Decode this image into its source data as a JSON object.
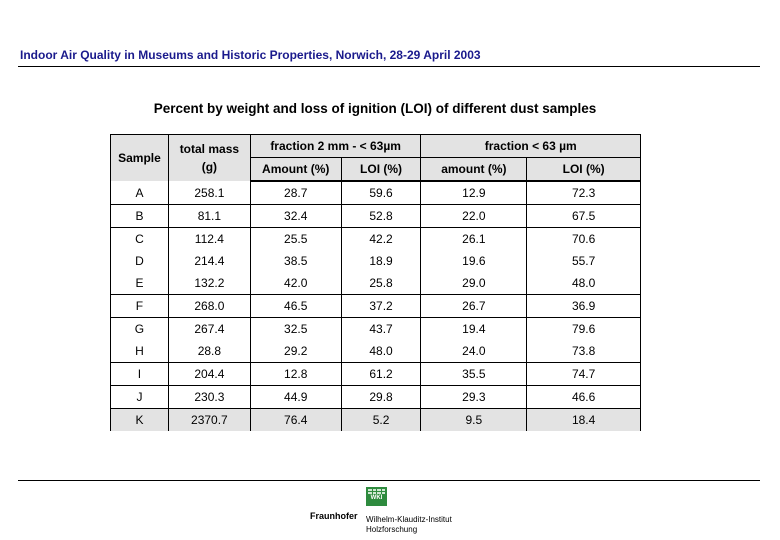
{
  "header": {
    "title": "Indoor Air Quality in Museums and Historic Properties, Norwich, 28-29 April 2003"
  },
  "table_title": "Percent by weight and loss of ignition (LOI) of different dust samples",
  "table": {
    "headers": {
      "sample": "Sample",
      "total_mass": "total mass",
      "total_mass_unit": "(g)",
      "fraction1": "fraction 2 mm - < 63µm",
      "fraction2": "fraction < 63 µm",
      "amount1": "Amount (%)",
      "loi1": "LOI (%)",
      "amount2": "amount (%)",
      "loi2": "LOI (%)"
    },
    "rows": [
      {
        "sample": "A",
        "mass": "258.1",
        "amt1": "28.7",
        "loi1": "59.6",
        "amt2": "12.9",
        "loi2": "72.3"
      },
      {
        "sample": "B",
        "mass": "81.1",
        "amt1": "32.4",
        "loi1": "52.8",
        "amt2": "22.0",
        "loi2": "67.5"
      },
      {
        "sample": "C",
        "mass": "112.4",
        "amt1": "25.5",
        "loi1": "42.2",
        "amt2": "26.1",
        "loi2": "70.6"
      },
      {
        "sample": "D",
        "mass": "214.4",
        "amt1": "38.5",
        "loi1": "18.9",
        "amt2": "19.6",
        "loi2": "55.7"
      },
      {
        "sample": "E",
        "mass": "132.2",
        "amt1": "42.0",
        "loi1": "25.8",
        "amt2": "29.0",
        "loi2": "48.0"
      },
      {
        "sample": "F",
        "mass": "268.0",
        "amt1": "46.5",
        "loi1": "37.2",
        "amt2": "26.7",
        "loi2": "36.9"
      },
      {
        "sample": "G",
        "mass": "267.4",
        "amt1": "32.5",
        "loi1": "43.7",
        "amt2": "19.4",
        "loi2": "79.6"
      },
      {
        "sample": "H",
        "mass": "28.8",
        "amt1": "29.2",
        "loi1": "48.0",
        "amt2": "24.0",
        "loi2": "73.8"
      },
      {
        "sample": "I",
        "mass": "204.4",
        "amt1": "12.8",
        "loi1": "61.2",
        "amt2": "35.5",
        "loi2": "74.7"
      },
      {
        "sample": "J",
        "mass": "230.3",
        "amt1": "44.9",
        "loi1": "29.8",
        "amt2": "29.3",
        "loi2": "46.6"
      },
      {
        "sample": "K",
        "mass": "2370.7",
        "amt1": "76.4",
        "loi1": "5.2",
        "amt2": "9.5",
        "loi2": "18.4"
      }
    ]
  },
  "footer": {
    "logo_text": "WKI",
    "brand": "Fraunhofer",
    "institute_line1": "Wilhelm-Klauditz-Institut",
    "institute_line2": "Holzforschung"
  }
}
